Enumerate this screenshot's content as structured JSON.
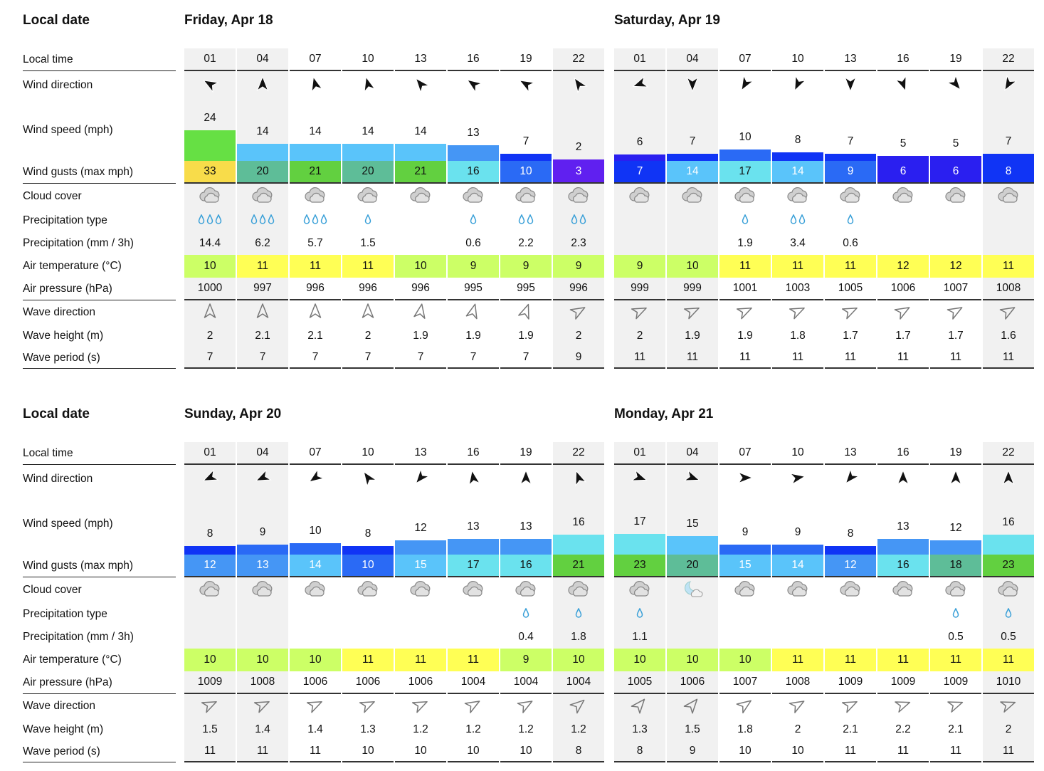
{
  "labels": {
    "local_date": "Local date",
    "rows": [
      "Local time",
      "Wind direction",
      "Wind speed (mph)",
      "Wind gusts (max mph)",
      "Cloud cover",
      "Precipitation type",
      "Precipitation (mm / 3h)",
      "Air temperature (°C)",
      "Air pressure (hPa)",
      "Wave direction",
      "Wave height (m)",
      "Wave period (s)"
    ]
  },
  "colors": {
    "night_bg": "#f1f1f1",
    "wind_scale": [
      {
        "max": 3,
        "color": "#6020f0"
      },
      {
        "max": 6,
        "color": "#2a1ff0"
      },
      {
        "max": 8,
        "color": "#1034f5"
      },
      {
        "max": 11,
        "color": "#2a6af5"
      },
      {
        "max": 13,
        "color": "#4596f5"
      },
      {
        "max": 15,
        "color": "#5ac4fa"
      },
      {
        "max": 17,
        "color": "#6ae2ee"
      },
      {
        "max": 20,
        "color": "#5ebd98"
      },
      {
        "max": 23,
        "color": "#62d040"
      },
      {
        "max": 30,
        "color": "#66e044"
      },
      {
        "max": 99,
        "color": "#f8dc4a"
      }
    ],
    "temp_cool": "#ccff66",
    "temp_warm": "#ffff55",
    "drop": "#3aa0d8",
    "cloud": "#cfcfcf"
  },
  "sections": [
    {
      "days": [
        {
          "date": "Friday, Apr 18",
          "hours": [
            {
              "time": "01",
              "night": true,
              "wind_dir": 300,
              "speed": 24,
              "gust": 33,
              "cloud": "cloud",
              "drops": 3,
              "precip": "14.4",
              "temp": 10,
              "pressure": 1000,
              "wave_dir": 0,
              "wave_h": "2",
              "wave_p": "7"
            },
            {
              "time": "04",
              "night": true,
              "wind_dir": 0,
              "speed": 14,
              "gust": 20,
              "cloud": "cloud",
              "drops": 3,
              "precip": "6.2",
              "temp": 11,
              "pressure": 997,
              "wave_dir": 0,
              "wave_h": "2.1",
              "wave_p": "7"
            },
            {
              "time": "07",
              "night": false,
              "wind_dir": 345,
              "speed": 14,
              "gust": 21,
              "cloud": "cloud",
              "drops": 3,
              "precip": "5.7",
              "temp": 11,
              "pressure": 996,
              "wave_dir": 0,
              "wave_h": "2.1",
              "wave_p": "7"
            },
            {
              "time": "10",
              "night": false,
              "wind_dir": 345,
              "speed": 14,
              "gust": 20,
              "cloud": "cloud",
              "drops": 1,
              "precip": "1.5",
              "temp": 11,
              "pressure": 996,
              "wave_dir": 0,
              "wave_h": "2",
              "wave_p": "7"
            },
            {
              "time": "13",
              "night": false,
              "wind_dir": 320,
              "speed": 14,
              "gust": 21,
              "cloud": "cloud",
              "drops": 0,
              "precip": "",
              "temp": 10,
              "pressure": 996,
              "wave_dir": 10,
              "wave_h": "1.9",
              "wave_p": "7"
            },
            {
              "time": "16",
              "night": false,
              "wind_dir": 305,
              "speed": 13,
              "gust": 16,
              "cloud": "cloud",
              "drops": 1,
              "precip": "0.6",
              "temp": 9,
              "pressure": 995,
              "wave_dir": 15,
              "wave_h": "1.9",
              "wave_p": "7"
            },
            {
              "time": "19",
              "night": false,
              "wind_dir": 300,
              "speed": 7,
              "gust": 10,
              "cloud": "cloud",
              "drops": 2,
              "precip": "2.2",
              "temp": 9,
              "pressure": 995,
              "wave_dir": 20,
              "wave_h": "1.9",
              "wave_p": "7"
            },
            {
              "time": "22",
              "night": true,
              "wind_dir": 325,
              "speed": 2,
              "gust": 3,
              "cloud": "cloud",
              "drops": 2,
              "precip": "2.3",
              "temp": 9,
              "pressure": 996,
              "wave_dir": 60,
              "wave_h": "2",
              "wave_p": "9"
            }
          ]
        },
        {
          "date": "Saturday, Apr 19",
          "hours": [
            {
              "time": "01",
              "night": true,
              "wind_dir": 250,
              "speed": 6,
              "gust": 7,
              "cloud": "cloud",
              "drops": 0,
              "precip": "",
              "temp": 9,
              "pressure": 999,
              "wave_dir": 65,
              "wave_h": "2",
              "wave_p": "11"
            },
            {
              "time": "04",
              "night": true,
              "wind_dir": 180,
              "speed": 7,
              "gust": 14,
              "cloud": "cloud",
              "drops": 0,
              "precip": "",
              "temp": 10,
              "pressure": 999,
              "wave_dir": 65,
              "wave_h": "1.9",
              "wave_p": "11"
            },
            {
              "time": "07",
              "night": false,
              "wind_dir": 210,
              "speed": 10,
              "gust": 17,
              "cloud": "cloud",
              "drops": 1,
              "precip": "1.9",
              "temp": 11,
              "pressure": 1001,
              "wave_dir": 65,
              "wave_h": "1.9",
              "wave_p": "11"
            },
            {
              "time": "10",
              "night": false,
              "wind_dir": 205,
              "speed": 8,
              "gust": 14,
              "cloud": "cloud",
              "drops": 2,
              "precip": "3.4",
              "temp": 11,
              "pressure": 1003,
              "wave_dir": 65,
              "wave_h": "1.8",
              "wave_p": "11"
            },
            {
              "time": "13",
              "night": false,
              "wind_dir": 180,
              "speed": 7,
              "gust": 9,
              "cloud": "cloud",
              "drops": 1,
              "precip": "0.6",
              "temp": 11,
              "pressure": 1005,
              "wave_dir": 65,
              "wave_h": "1.7",
              "wave_p": "11"
            },
            {
              "time": "16",
              "night": false,
              "wind_dir": 160,
              "speed": 5,
              "gust": 6,
              "cloud": "cloud",
              "drops": 0,
              "precip": "",
              "temp": 12,
              "pressure": 1006,
              "wave_dir": 60,
              "wave_h": "1.7",
              "wave_p": "11"
            },
            {
              "time": "19",
              "night": false,
              "wind_dir": 140,
              "speed": 5,
              "gust": 6,
              "cloud": "cloud",
              "drops": 0,
              "precip": "",
              "temp": 12,
              "pressure": 1007,
              "wave_dir": 60,
              "wave_h": "1.7",
              "wave_p": "11"
            },
            {
              "time": "22",
              "night": true,
              "wind_dir": 210,
              "speed": 7,
              "gust": 8,
              "cloud": "cloud",
              "drops": 0,
              "precip": "",
              "temp": 11,
              "pressure": 1008,
              "wave_dir": 60,
              "wave_h": "1.6",
              "wave_p": "11"
            }
          ]
        }
      ]
    },
    {
      "days": [
        {
          "date": "Sunday, Apr 20",
          "hours": [
            {
              "time": "01",
              "night": true,
              "wind_dir": 245,
              "speed": 8,
              "gust": 12,
              "cloud": "cloud",
              "drops": 0,
              "precip": "",
              "temp": 10,
              "pressure": 1009,
              "wave_dir": 65,
              "wave_h": "1.5",
              "wave_p": "11"
            },
            {
              "time": "04",
              "night": true,
              "wind_dir": 245,
              "speed": 9,
              "gust": 13,
              "cloud": "cloud",
              "drops": 0,
              "precip": "",
              "temp": 10,
              "pressure": 1008,
              "wave_dir": 65,
              "wave_h": "1.4",
              "wave_p": "11"
            },
            {
              "time": "07",
              "night": false,
              "wind_dir": 235,
              "speed": 10,
              "gust": 14,
              "cloud": "cloud",
              "drops": 0,
              "precip": "",
              "temp": 10,
              "pressure": 1006,
              "wave_dir": 65,
              "wave_h": "1.4",
              "wave_p": "11"
            },
            {
              "time": "10",
              "night": false,
              "wind_dir": 325,
              "speed": 8,
              "gust": 10,
              "cloud": "cloud",
              "drops": 0,
              "precip": "",
              "temp": 11,
              "pressure": 1006,
              "wave_dir": 65,
              "wave_h": "1.3",
              "wave_p": "10"
            },
            {
              "time": "13",
              "night": false,
              "wind_dir": 220,
              "speed": 12,
              "gust": 15,
              "cloud": "cloud",
              "drops": 0,
              "precip": "",
              "temp": 11,
              "pressure": 1006,
              "wave_dir": 65,
              "wave_h": "1.2",
              "wave_p": "10"
            },
            {
              "time": "16",
              "night": false,
              "wind_dir": 350,
              "speed": 13,
              "gust": 17,
              "cloud": "cloud",
              "drops": 0,
              "precip": "",
              "temp": 11,
              "pressure": 1004,
              "wave_dir": 60,
              "wave_h": "1.2",
              "wave_p": "10"
            },
            {
              "time": "19",
              "night": false,
              "wind_dir": 0,
              "speed": 13,
              "gust": 16,
              "cloud": "cloud",
              "drops": 1,
              "precip": "0.4",
              "temp": 9,
              "pressure": 1004,
              "wave_dir": 60,
              "wave_h": "1.2",
              "wave_p": "10"
            },
            {
              "time": "22",
              "night": true,
              "wind_dir": 340,
              "speed": 16,
              "gust": 21,
              "cloud": "cloud",
              "drops": 1,
              "precip": "1.8",
              "temp": 10,
              "pressure": 1004,
              "wave_dir": 50,
              "wave_h": "1.2",
              "wave_p": "8"
            }
          ]
        },
        {
          "date": "Monday, Apr 21",
          "hours": [
            {
              "time": "01",
              "night": true,
              "wind_dir": 110,
              "speed": 17,
              "gust": 23,
              "cloud": "cloud",
              "drops": 1,
              "precip": "1.1",
              "temp": 10,
              "pressure": 1005,
              "wave_dir": 40,
              "wave_h": "1.3",
              "wave_p": "8"
            },
            {
              "time": "04",
              "night": true,
              "wind_dir": 110,
              "speed": 15,
              "gust": 20,
              "cloud": "moon-cloud",
              "drops": 0,
              "precip": "",
              "temp": 10,
              "pressure": 1006,
              "wave_dir": 40,
              "wave_h": "1.5",
              "wave_p": "9"
            },
            {
              "time": "07",
              "night": false,
              "wind_dir": 90,
              "speed": 9,
              "gust": 15,
              "cloud": "cloud",
              "drops": 0,
              "precip": "",
              "temp": 10,
              "pressure": 1007,
              "wave_dir": 55,
              "wave_h": "1.8",
              "wave_p": "10"
            },
            {
              "time": "10",
              "night": false,
              "wind_dir": 80,
              "speed": 9,
              "gust": 14,
              "cloud": "cloud",
              "drops": 0,
              "precip": "",
              "temp": 11,
              "pressure": 1008,
              "wave_dir": 60,
              "wave_h": "2",
              "wave_p": "10"
            },
            {
              "time": "13",
              "night": false,
              "wind_dir": 220,
              "speed": 8,
              "gust": 12,
              "cloud": "cloud",
              "drops": 0,
              "precip": "",
              "temp": 11,
              "pressure": 1009,
              "wave_dir": 65,
              "wave_h": "2.1",
              "wave_p": "11"
            },
            {
              "time": "16",
              "night": false,
              "wind_dir": 0,
              "speed": 13,
              "gust": 16,
              "cloud": "cloud",
              "drops": 0,
              "precip": "",
              "temp": 11,
              "pressure": 1009,
              "wave_dir": 70,
              "wave_h": "2.2",
              "wave_p": "11"
            },
            {
              "time": "19",
              "night": false,
              "wind_dir": 0,
              "speed": 12,
              "gust": 18,
              "cloud": "cloud",
              "drops": 1,
              "precip": "0.5",
              "temp": 11,
              "pressure": 1009,
              "wave_dir": 70,
              "wave_h": "2.1",
              "wave_p": "11"
            },
            {
              "time": "22",
              "night": true,
              "wind_dir": 0,
              "speed": 16,
              "gust": 23,
              "cloud": "cloud",
              "drops": 1,
              "precip": "0.5",
              "temp": 11,
              "pressure": 1010,
              "wave_dir": 70,
              "wave_h": "2",
              "wave_p": "11"
            }
          ]
        }
      ]
    }
  ]
}
